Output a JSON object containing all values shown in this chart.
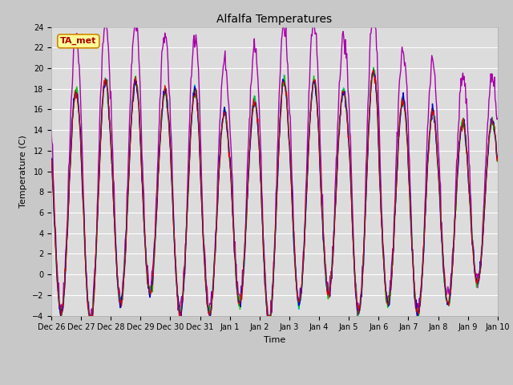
{
  "title": "Alfalfa Temperatures",
  "xlabel": "Time",
  "ylabel": "Temperature (C)",
  "ylim": [
    -4,
    24
  ],
  "yticks": [
    -4,
    -2,
    0,
    2,
    4,
    6,
    8,
    10,
    12,
    14,
    16,
    18,
    20,
    22,
    24
  ],
  "fig_bg_color": "#c8c8c8",
  "plot_bg_color": "#dcdcdc",
  "grid_color": "#ffffff",
  "series": {
    "PanelT": {
      "color": "#dd0000",
      "lw": 0.8,
      "zorder": 5
    },
    "HMP60": {
      "color": "#0000cc",
      "lw": 1.0,
      "zorder": 4
    },
    "NR01_PRT": {
      "color": "#00cc00",
      "lw": 1.0,
      "zorder": 3
    },
    "SonicT": {
      "color": "#aa00aa",
      "lw": 1.0,
      "zorder": 2
    },
    "AM25T_PRT": {
      "color": "#00bbbb",
      "lw": 1.0,
      "zorder": 1
    }
  },
  "legend_series": {
    "PanelT": {
      "color": "#dd0000"
    },
    "HMP60": {
      "color": "#0000cc"
    },
    "NR01_PRT": {
      "color": "#00cc00"
    },
    "SonicT": {
      "color": "#9966cc"
    },
    "AM25T_PRT": {
      "color": "#00bbbb"
    }
  },
  "annotation_text": "TA_met",
  "annotation_bg": "#ffff99",
  "annotation_border": "#cc8800",
  "annotation_text_color": "#aa0000",
  "tick_fontsize": 7,
  "label_fontsize": 8,
  "title_fontsize": 10,
  "legend_fontsize": 8
}
